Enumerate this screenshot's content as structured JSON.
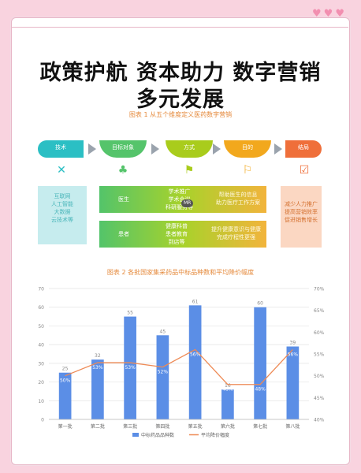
{
  "header": {
    "title_line1": "政策护航 资本助力 数字营销",
    "title_line2": "多元发展",
    "hearts": "♥♥♥"
  },
  "diagram": {
    "caption": "图表 1 从五个维度定义医药数字营销",
    "steps": [
      "技术",
      "目标对象",
      "方式",
      "目的",
      "结局"
    ],
    "icons": [
      "tools-icon",
      "people-icon",
      "megaphone-icon",
      "trophy-icon",
      "checkbox-icon"
    ],
    "tech_box": "互联网\n人工智能\n大数据\n云技术等",
    "row1": {
      "target": "医生",
      "method": "学术推广\n学术会议\n科研服务等",
      "tag": "MR",
      "goal": "帮助医生的信息\n助力医疗工作方案"
    },
    "row2": {
      "target": "患者",
      "method": "健康科普\n患者教育\n到店等",
      "goal": "提升健康意识与健康\n完成疗程性更强"
    },
    "outcome_box": "减少人力推广\n提高营销效率\n促进销售增长"
  },
  "chart_data": {
    "caption": "图表 2 各批国家集采药品中标品种数和平均降价幅度",
    "type": "bar",
    "categories": [
      "第一批",
      "第二批",
      "第三批",
      "第四批",
      "第五批",
      "第六批",
      "第七批",
      "第八批"
    ],
    "series": [
      {
        "name": "中标药品品种数",
        "type": "bar",
        "axis": "left",
        "values": [
          25,
          32,
          55,
          45,
          61,
          16,
          60,
          39
        ],
        "color": "#5b8ee6"
      },
      {
        "name": "平均降价幅度",
        "type": "line",
        "axis": "right",
        "values": [
          50,
          53,
          53,
          52,
          56,
          48,
          48,
          56
        ],
        "color": "#ee8a55"
      }
    ],
    "left_axis": {
      "ticks": [
        0,
        10,
        20,
        30,
        40,
        50,
        60,
        70
      ],
      "ylim": [
        0,
        70
      ]
    },
    "right_axis": {
      "ticks": [
        "40%",
        "45%",
        "50%",
        "55%",
        "60%",
        "65%",
        "70%"
      ],
      "ylim": [
        40,
        70
      ]
    },
    "grid": true,
    "legend": "bottom"
  }
}
